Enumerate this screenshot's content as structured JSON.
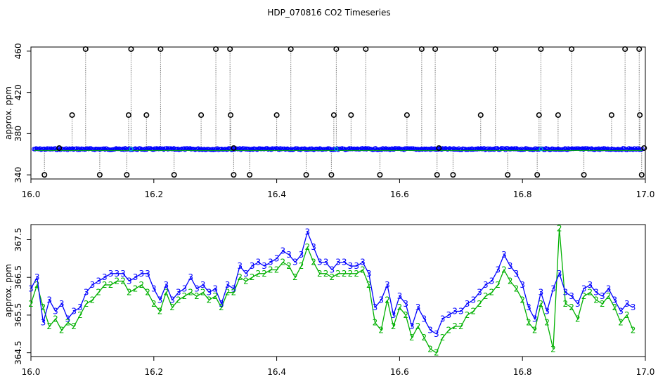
{
  "title": "HDP_070816  CO2 Timeseries",
  "colors": {
    "background": "#ffffff",
    "axis": "#000000",
    "raw_points": "#000000",
    "raw_verticals": "#777777",
    "series_3": "#0000ff",
    "series_2": "#00b000",
    "cyan_marks": "#00c0c0"
  },
  "chart_data": [
    {
      "type": "scatter",
      "panel": "top",
      "xlabel": "",
      "ylabel": "approx. ppm",
      "xlim": [
        16.0,
        17.0
      ],
      "ylim": [
        336,
        464
      ],
      "xticks": [
        "16.0",
        "16.2",
        "16.4",
        "16.6",
        "16.8",
        "17.0"
      ],
      "yticks": [
        "340",
        "380",
        "420",
        "460"
      ],
      "baseline": 365,
      "high_outliers": [
        {
          "x": 16.089,
          "y": 462
        },
        {
          "x": 16.163,
          "y": 462
        },
        {
          "x": 16.211,
          "y": 462
        },
        {
          "x": 16.301,
          "y": 462
        },
        {
          "x": 16.324,
          "y": 462
        },
        {
          "x": 16.423,
          "y": 462
        },
        {
          "x": 16.497,
          "y": 462
        },
        {
          "x": 16.545,
          "y": 462
        },
        {
          "x": 16.636,
          "y": 462
        },
        {
          "x": 16.658,
          "y": 462
        },
        {
          "x": 16.756,
          "y": 462
        },
        {
          "x": 16.83,
          "y": 462
        },
        {
          "x": 16.88,
          "y": 462
        },
        {
          "x": 16.967,
          "y": 462
        },
        {
          "x": 16.99,
          "y": 462
        }
      ],
      "mid_outliers": [
        {
          "x": 16.067,
          "y": 398
        },
        {
          "x": 16.159,
          "y": 398
        },
        {
          "x": 16.188,
          "y": 398
        },
        {
          "x": 16.277,
          "y": 398
        },
        {
          "x": 16.325,
          "y": 398
        },
        {
          "x": 16.4,
          "y": 398
        },
        {
          "x": 16.493,
          "y": 398
        },
        {
          "x": 16.521,
          "y": 398
        },
        {
          "x": 16.612,
          "y": 398
        },
        {
          "x": 16.732,
          "y": 398
        },
        {
          "x": 16.827,
          "y": 398
        },
        {
          "x": 16.858,
          "y": 398
        },
        {
          "x": 16.945,
          "y": 398
        },
        {
          "x": 16.991,
          "y": 398
        }
      ],
      "low_outliers": [
        {
          "x": 16.022,
          "y": 340
        },
        {
          "x": 16.112,
          "y": 340
        },
        {
          "x": 16.156,
          "y": 340
        },
        {
          "x": 16.233,
          "y": 340
        },
        {
          "x": 16.33,
          "y": 340
        },
        {
          "x": 16.356,
          "y": 340
        },
        {
          "x": 16.448,
          "y": 340
        },
        {
          "x": 16.489,
          "y": 340
        },
        {
          "x": 16.568,
          "y": 340
        },
        {
          "x": 16.661,
          "y": 340
        },
        {
          "x": 16.687,
          "y": 340
        },
        {
          "x": 16.776,
          "y": 340
        },
        {
          "x": 16.824,
          "y": 340
        },
        {
          "x": 16.9,
          "y": 340
        },
        {
          "x": 16.994,
          "y": 340
        }
      ],
      "baseline_markers": [
        {
          "x": 16.046,
          "y": 366
        },
        {
          "x": 16.33,
          "y": 366
        },
        {
          "x": 16.664,
          "y": 366
        },
        {
          "x": 16.998,
          "y": 366
        }
      ]
    },
    {
      "type": "line",
      "panel": "bottom",
      "xlabel": "",
      "ylabel": "approx. ppm",
      "xlim": [
        16.0,
        17.0
      ],
      "ylim": [
        364.4,
        367.9
      ],
      "xticks": [
        "16.0",
        "16.2",
        "16.4",
        "16.6",
        "16.8",
        "17.0"
      ],
      "yticks": [
        "364.5",
        "365.5",
        "366.5",
        "367.5"
      ],
      "series": [
        {
          "marker": "3",
          "x": [
            16.0,
            16.01,
            16.02,
            16.03,
            16.04,
            16.05,
            16.06,
            16.07,
            16.08,
            16.09,
            16.1,
            16.11,
            16.12,
            16.13,
            16.14,
            16.15,
            16.16,
            16.17,
            16.18,
            16.19,
            16.2,
            16.21,
            16.22,
            16.23,
            16.24,
            16.25,
            16.26,
            16.27,
            16.28,
            16.29,
            16.3,
            16.31,
            16.32,
            16.33,
            16.34,
            16.35,
            16.36,
            16.37,
            16.38,
            16.39,
            16.4,
            16.41,
            16.42,
            16.43,
            16.44,
            16.45,
            16.46,
            16.47,
            16.48,
            16.49,
            16.5,
            16.51,
            16.52,
            16.53,
            16.54,
            16.55,
            16.56,
            16.57,
            16.58,
            16.59,
            16.6,
            16.61,
            16.62,
            16.63,
            16.64,
            16.65,
            16.66,
            16.67,
            16.68,
            16.69,
            16.7,
            16.71,
            16.72,
            16.73,
            16.74,
            16.75,
            16.76,
            16.77,
            16.78,
            16.79,
            16.8,
            16.81,
            16.82,
            16.83,
            16.84,
            16.85,
            16.86,
            16.87,
            16.88,
            16.89,
            16.9,
            16.91,
            16.92,
            16.93,
            16.94,
            16.95,
            16.96,
            16.97,
            16.98
          ],
          "values": [
            366.2,
            366.5,
            365.3,
            365.9,
            365.6,
            365.8,
            365.4,
            365.6,
            365.7,
            366.1,
            366.3,
            366.4,
            366.5,
            366.6,
            366.6,
            366.6,
            366.4,
            366.5,
            366.6,
            366.6,
            366.2,
            365.9,
            366.3,
            365.9,
            366.1,
            366.2,
            366.5,
            366.2,
            366.3,
            366.1,
            366.2,
            365.8,
            366.3,
            366.2,
            366.8,
            366.6,
            366.8,
            366.9,
            366.8,
            366.9,
            367.0,
            367.2,
            367.1,
            366.9,
            367.1,
            367.7,
            367.3,
            366.9,
            366.9,
            366.7,
            366.9,
            366.9,
            366.8,
            366.8,
            366.9,
            366.6,
            365.7,
            365.9,
            366.3,
            365.5,
            366.0,
            365.8,
            365.2,
            365.7,
            365.4,
            365.1,
            365.0,
            365.4,
            365.5,
            365.6,
            365.6,
            365.8,
            365.9,
            366.1,
            366.3,
            366.4,
            366.7,
            367.1,
            366.8,
            366.6,
            366.3,
            365.7,
            365.4,
            366.1,
            365.6,
            366.2,
            366.6,
            366.1,
            366.0,
            365.8,
            366.2,
            366.3,
            366.1,
            366.0,
            366.2,
            365.9,
            365.6,
            365.8,
            365.7
          ]
        },
        {
          "marker": "2",
          "x": [
            16.0,
            16.01,
            16.02,
            16.03,
            16.04,
            16.05,
            16.06,
            16.07,
            16.08,
            16.09,
            16.1,
            16.11,
            16.12,
            16.13,
            16.14,
            16.15,
            16.16,
            16.17,
            16.18,
            16.19,
            16.2,
            16.21,
            16.22,
            16.23,
            16.24,
            16.25,
            16.26,
            16.27,
            16.28,
            16.29,
            16.3,
            16.31,
            16.32,
            16.33,
            16.34,
            16.35,
            16.36,
            16.37,
            16.38,
            16.39,
            16.4,
            16.41,
            16.42,
            16.43,
            16.44,
            16.45,
            16.46,
            16.47,
            16.48,
            16.49,
            16.5,
            16.51,
            16.52,
            16.53,
            16.54,
            16.55,
            16.56,
            16.57,
            16.58,
            16.59,
            16.6,
            16.61,
            16.62,
            16.63,
            16.64,
            16.65,
            16.66,
            16.67,
            16.68,
            16.69,
            16.7,
            16.71,
            16.72,
            16.73,
            16.74,
            16.75,
            16.76,
            16.77,
            16.78,
            16.79,
            16.8,
            16.81,
            16.82,
            16.83,
            16.84,
            16.85,
            16.86,
            16.87,
            16.88,
            16.89,
            16.9,
            16.91,
            16.92,
            16.93,
            16.94,
            16.95,
            16.96,
            16.97,
            16.98
          ],
          "values": [
            365.8,
            366.3,
            365.7,
            365.2,
            365.4,
            365.1,
            365.3,
            365.2,
            365.5,
            365.8,
            365.9,
            366.1,
            366.3,
            366.3,
            366.4,
            366.4,
            366.1,
            366.2,
            366.3,
            366.1,
            365.8,
            365.6,
            366.1,
            365.7,
            365.9,
            366.0,
            366.1,
            366.0,
            366.1,
            365.9,
            366.0,
            365.7,
            366.1,
            366.1,
            366.5,
            366.4,
            366.5,
            366.6,
            366.6,
            366.7,
            366.7,
            366.9,
            366.8,
            366.5,
            366.8,
            367.3,
            366.9,
            366.6,
            366.6,
            366.5,
            366.6,
            366.6,
            366.6,
            366.6,
            366.7,
            366.3,
            365.3,
            365.1,
            365.9,
            365.2,
            365.7,
            365.5,
            364.9,
            365.2,
            364.9,
            364.6,
            364.5,
            364.9,
            365.1,
            365.2,
            365.2,
            365.5,
            365.6,
            365.8,
            366.0,
            366.1,
            366.3,
            366.7,
            366.4,
            366.2,
            365.9,
            365.3,
            365.1,
            365.8,
            365.3,
            364.6,
            367.8,
            365.8,
            365.7,
            365.4,
            366.0,
            366.1,
            365.9,
            365.8,
            366.0,
            365.7,
            365.3,
            365.5,
            365.1
          ]
        }
      ]
    }
  ]
}
